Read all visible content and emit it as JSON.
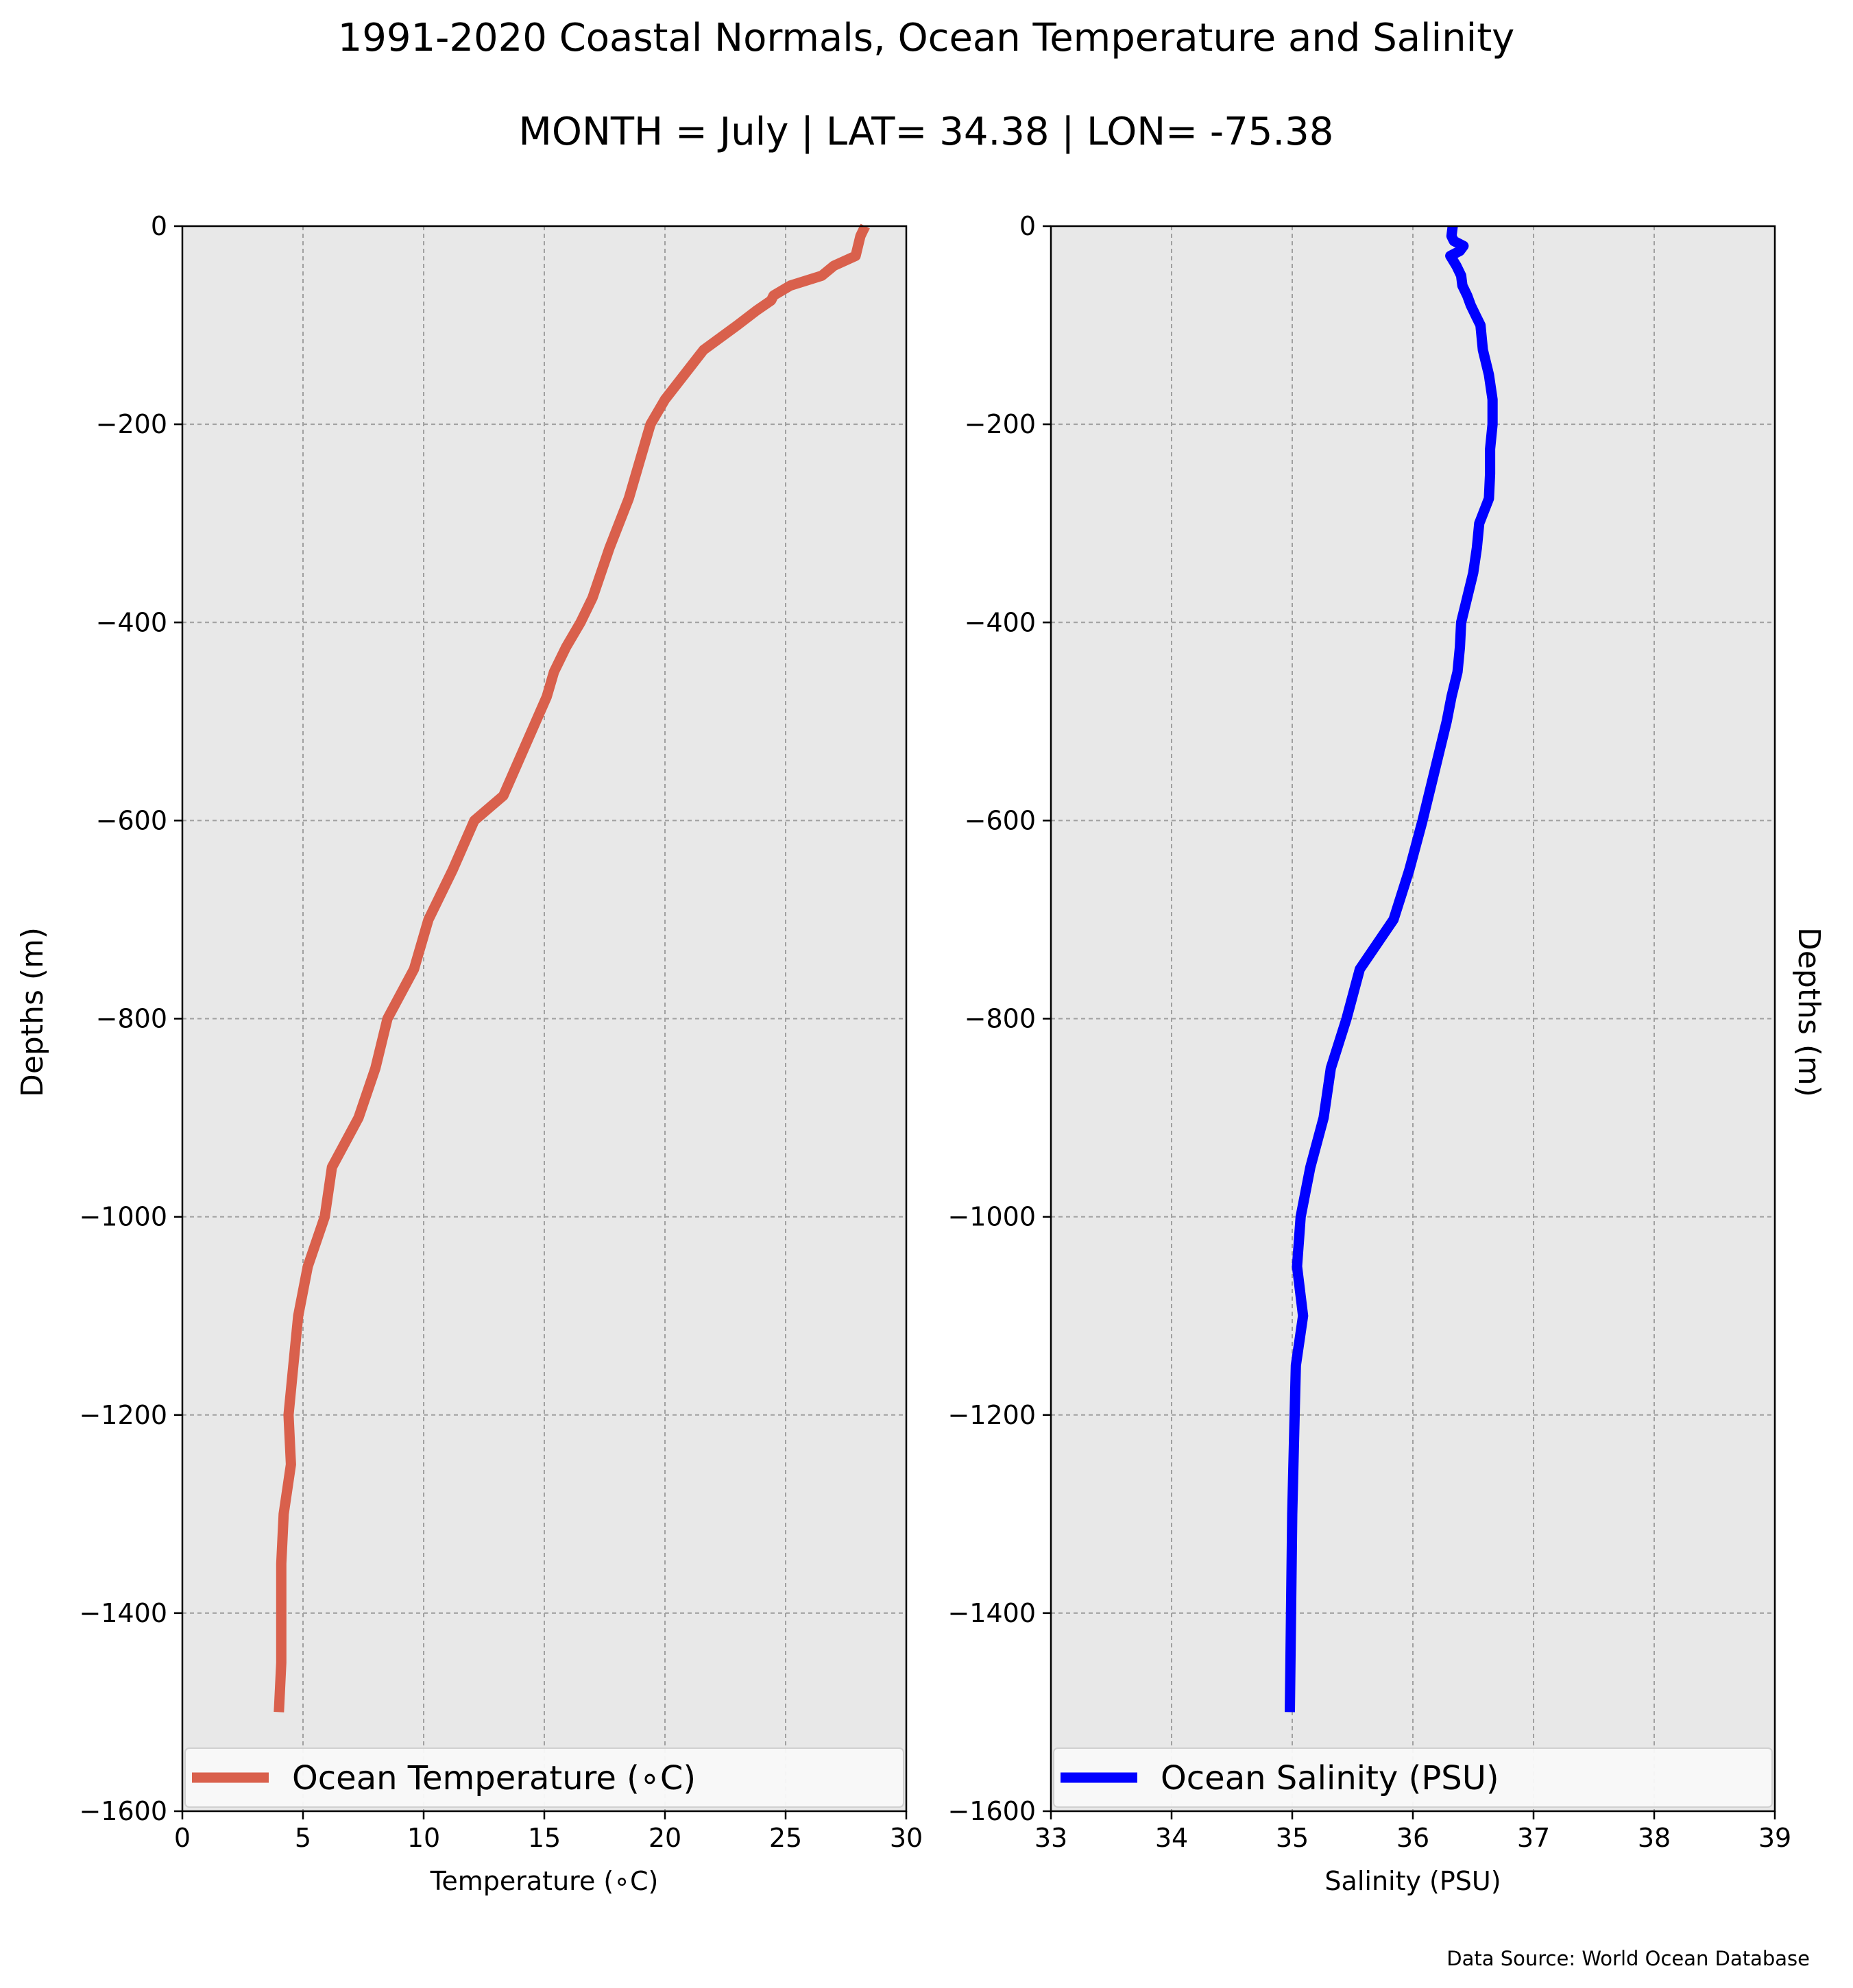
{
  "figure": {
    "title_line1": "1991-2020 Coastal Normals, Ocean Temperature and Salinity",
    "title_line2": "MONTH = July | LAT= 34.38 | LON= -75.38",
    "source_note": "Data Source: World Ocean Database",
    "background_color": "#e8e8e8"
  },
  "chart_data": [
    {
      "type": "line",
      "title": "",
      "xlabel": "Temperature ($^\\circ$C)",
      "xlabel_display": "Temperature (∘C)",
      "ylabel": "Depths (m)",
      "xlim": [
        0,
        30
      ],
      "ylim": [
        -1600,
        0
      ],
      "xticks": [
        0,
        5,
        10,
        15,
        20,
        25,
        30
      ],
      "yticks": [
        0,
        -200,
        -400,
        -600,
        -800,
        -1000,
        -1200,
        -1400,
        -1600
      ],
      "grid": true,
      "legend_position": "bottom",
      "series": [
        {
          "name": "Ocean Temperature ($^\\circ$C)",
          "name_display": "Ocean Temperature (∘C)",
          "color": "#d9604c",
          "x": [
            28.3,
            28.2,
            28.1,
            28.0,
            27.9,
            27.0,
            26.5,
            25.2,
            24.5,
            24.4,
            23.8,
            23.0,
            21.6,
            20.0,
            19.4,
            19.1,
            18.5,
            17.7,
            17.0,
            16.5,
            15.9,
            15.4,
            15.1,
            14.2,
            13.3,
            12.1,
            11.2,
            10.2,
            9.6,
            8.5,
            8.0,
            7.3,
            6.2,
            5.9,
            5.2,
            4.8,
            4.6,
            4.4,
            4.5,
            4.2,
            4.1,
            4.1,
            4.1,
            4.0
          ],
          "y": [
            0,
            -5,
            -10,
            -20,
            -30,
            -40,
            -50,
            -60,
            -70,
            -75,
            -85,
            -100,
            -125,
            -175,
            -200,
            -225,
            -275,
            -325,
            -375,
            -400,
            -425,
            -450,
            -475,
            -525,
            -575,
            -600,
            -650,
            -700,
            -750,
            -800,
            -850,
            -900,
            -950,
            -1000,
            -1050,
            -1100,
            -1150,
            -1200,
            -1250,
            -1300,
            -1350,
            -1400,
            -1450,
            -1500
          ]
        }
      ]
    },
    {
      "type": "line",
      "title": "",
      "xlabel": "Salinity (PSU)",
      "ylabel": "Depths (m)",
      "xlim": [
        33,
        39
      ],
      "ylim": [
        -1600,
        0
      ],
      "xticks": [
        33,
        34,
        35,
        36,
        37,
        38,
        39
      ],
      "yticks": [
        0,
        -200,
        -400,
        -600,
        -800,
        -1000,
        -1200,
        -1400,
        -1600
      ],
      "grid": true,
      "legend_position": "bottom",
      "series": [
        {
          "name": "Ocean Salinity (PSU)",
          "color": "#0000ff",
          "x": [
            36.33,
            36.32,
            36.34,
            36.42,
            36.39,
            36.31,
            36.36,
            36.4,
            36.41,
            36.45,
            36.48,
            36.52,
            36.56,
            36.58,
            36.63,
            36.66,
            36.66,
            36.64,
            36.64,
            36.63,
            36.55,
            36.53,
            36.5,
            36.45,
            36.4,
            36.39,
            36.37,
            36.32,
            36.28,
            36.18,
            36.08,
            35.97,
            35.84,
            35.56,
            35.45,
            35.32,
            35.26,
            35.15,
            35.07,
            35.04,
            35.09,
            35.03,
            35.02,
            35.0,
            34.98
          ],
          "y": [
            0,
            -10,
            -15,
            -20,
            -25,
            -30,
            -40,
            -50,
            -60,
            -70,
            -80,
            -90,
            -100,
            -125,
            -150,
            -175,
            -200,
            -225,
            -250,
            -275,
            -300,
            -325,
            -350,
            -375,
            -400,
            -425,
            -450,
            -475,
            -500,
            -550,
            -600,
            -650,
            -700,
            -750,
            -800,
            -850,
            -900,
            -950,
            -1000,
            -1050,
            -1100,
            -1150,
            -1200,
            -1300,
            -1500
          ]
        }
      ]
    }
  ]
}
